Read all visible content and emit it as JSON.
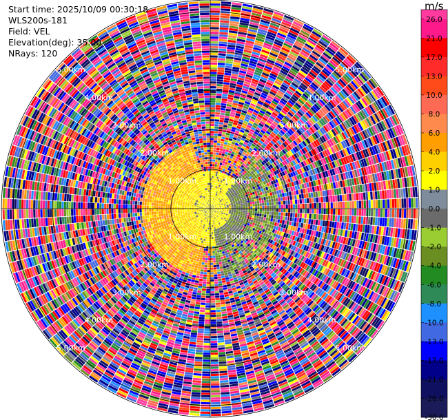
{
  "header": {
    "start_time": "Start time: 2025/10/09 00:30:18",
    "instrument": "WLS200s-181",
    "field": "Field: VEL",
    "elevation": "Elevation(deg): 35.00",
    "nrays": "NRays: 120"
  },
  "colorbar": {
    "unit": "m/s",
    "ticks": [
      "26.0",
      "21.0",
      "17.0",
      "13.0",
      "10.0",
      "8.0",
      "6.0",
      "4.0",
      "2.0",
      "1.0",
      "0.0",
      "-1.0",
      "-2.0",
      "-4.0",
      "-6.0",
      "-8.0",
      "-10.0",
      "-13.0",
      "-17.0",
      "-21.0",
      "-26.0",
      "-30.0"
    ],
    "colors": [
      "#ff3ba0",
      "#ff1a8c",
      "#ff0000",
      "#ff2a2a",
      "#ff4a1a",
      "#ff6a55",
      "#ff8a4d",
      "#ff9e00",
      "#ffd000",
      "#ffff00",
      "#7f8c9b",
      "#6b6b6b",
      "#9acd32",
      "#6b8e23",
      "#228b22",
      "#2e8b57",
      "#1e90ff",
      "#4169e1",
      "#0000ff",
      "#00008b",
      "#101060",
      "#1b1b5a"
    ]
  },
  "chart_data": {
    "type": "heatmap",
    "projection": "polar",
    "nrays": 120,
    "ring_labels": [
      {
        "text": "1.00km",
        "range_km": 1.0
      },
      {
        "text": "2.00km",
        "range_km": 2.0
      },
      {
        "text": "3.00km",
        "range_km": 3.0
      },
      {
        "text": "4.00km",
        "range_km": 4.0
      },
      {
        "text": "5.00km",
        "range_km": 5.0
      }
    ],
    "max_range_km": 5.3,
    "near_field": [
      {
        "range_km": [
          0.0,
          1.0
        ],
        "dominant_values": [
          0.0,
          -2.0,
          1.0
        ],
        "note_sector": "grey core"
      },
      {
        "range_km": [
          1.0,
          2.0
        ],
        "dominant_values": [
          2.0,
          1.0,
          4.0,
          -2.0,
          -6.0
        ]
      },
      {
        "range_km": [
          2.0,
          5.3
        ],
        "dominant_values": "noise"
      }
    ]
  }
}
